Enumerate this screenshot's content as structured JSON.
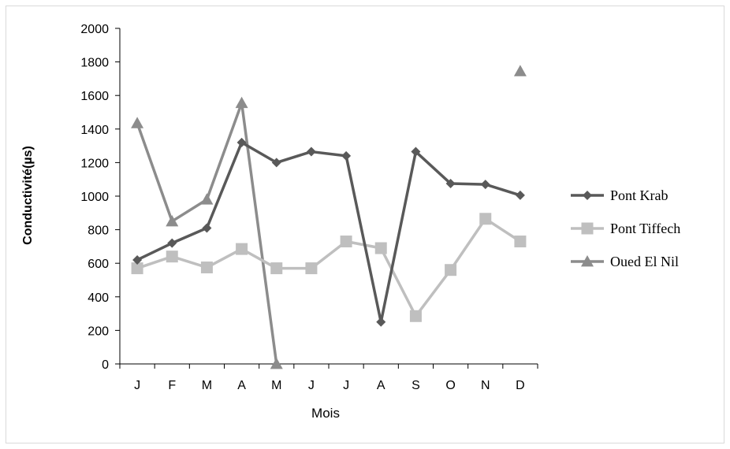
{
  "chart_data": {
    "type": "line",
    "title": "",
    "xlabel": "Mois",
    "ylabel": "Conductivité(µs)",
    "categories": [
      "J",
      "F",
      "M",
      "A",
      "M",
      "J",
      "J",
      "A",
      "S",
      "O",
      "N",
      "D"
    ],
    "ylim": [
      0,
      2000
    ],
    "yticks": [
      0,
      200,
      400,
      600,
      800,
      1000,
      1200,
      1400,
      1600,
      1800,
      2000
    ],
    "grid": false,
    "legend_position": "right",
    "series": [
      {
        "name": "Pont Krab",
        "marker": "diamond",
        "color": "#595959",
        "values": [
          620,
          720,
          810,
          1320,
          1200,
          1265,
          1240,
          250,
          1265,
          1075,
          1070,
          1005
        ]
      },
      {
        "name": "Pont Tiffech",
        "marker": "square",
        "color": "#bfbfbf",
        "values": [
          570,
          640,
          575,
          685,
          570,
          570,
          730,
          690,
          285,
          560,
          865,
          730
        ]
      },
      {
        "name": "Oued El Nil",
        "marker": "triangle",
        "color": "#8c8c8c",
        "values": [
          1435,
          850,
          980,
          1555,
          0,
          null,
          null,
          null,
          null,
          null,
          null,
          1745
        ]
      }
    ]
  }
}
